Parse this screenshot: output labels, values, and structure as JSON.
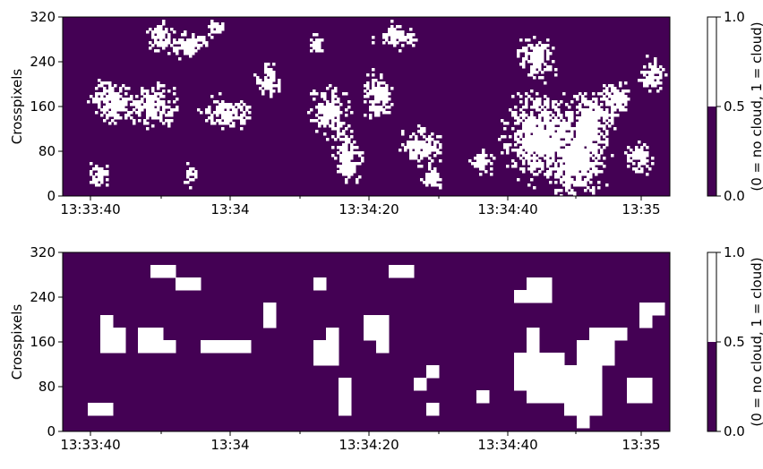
{
  "chart_data": [
    {
      "type": "heatmap",
      "title": "",
      "xlabel": "",
      "ylabel": "Crosspixels",
      "x_tick_labels": [
        "13:33:40",
        "13:34",
        "13:34:20",
        "13:34:40",
        "13:35"
      ],
      "y_tick_labels": [
        "0",
        "80",
        "160",
        "240",
        "320"
      ],
      "ylim": [
        0,
        320
      ],
      "colors": {
        "no_cloud": "#440154",
        "cloud": "#ffffff"
      },
      "colorbar": {
        "label": "(0 = no cloud, 1 = cloud)",
        "ticks": [
          "0.0",
          "0.5",
          "1.0"
        ]
      },
      "cloud_regions": [
        {
          "t": 0.16,
          "y": 285,
          "rx": 0.02,
          "ry": 22
        },
        {
          "t": 0.21,
          "y": 270,
          "rx": 0.025,
          "ry": 20
        },
        {
          "t": 0.25,
          "y": 300,
          "rx": 0.015,
          "ry": 12
        },
        {
          "t": 0.08,
          "y": 170,
          "rx": 0.03,
          "ry": 32
        },
        {
          "t": 0.15,
          "y": 160,
          "rx": 0.035,
          "ry": 32
        },
        {
          "t": 0.27,
          "y": 150,
          "rx": 0.035,
          "ry": 25
        },
        {
          "t": 0.34,
          "y": 205,
          "rx": 0.02,
          "ry": 28
        },
        {
          "t": 0.42,
          "y": 270,
          "rx": 0.01,
          "ry": 18
        },
        {
          "t": 0.55,
          "y": 285,
          "rx": 0.03,
          "ry": 20
        },
        {
          "t": 0.44,
          "y": 150,
          "rx": 0.03,
          "ry": 40
        },
        {
          "t": 0.47,
          "y": 60,
          "rx": 0.02,
          "ry": 40
        },
        {
          "t": 0.52,
          "y": 180,
          "rx": 0.02,
          "ry": 40
        },
        {
          "t": 0.59,
          "y": 90,
          "rx": 0.03,
          "ry": 28
        },
        {
          "t": 0.69,
          "y": 60,
          "rx": 0.015,
          "ry": 20
        },
        {
          "t": 0.78,
          "y": 250,
          "rx": 0.03,
          "ry": 30
        },
        {
          "t": 0.78,
          "y": 110,
          "rx": 0.05,
          "ry": 70
        },
        {
          "t": 0.85,
          "y": 60,
          "rx": 0.04,
          "ry": 55
        },
        {
          "t": 0.87,
          "y": 140,
          "rx": 0.03,
          "ry": 40
        },
        {
          "t": 0.91,
          "y": 175,
          "rx": 0.02,
          "ry": 28
        },
        {
          "t": 0.97,
          "y": 215,
          "rx": 0.02,
          "ry": 28
        },
        {
          "t": 0.95,
          "y": 70,
          "rx": 0.02,
          "ry": 25
        },
        {
          "t": 0.21,
          "y": 40,
          "rx": 0.01,
          "ry": 18
        },
        {
          "t": 0.61,
          "y": 30,
          "rx": 0.015,
          "ry": 18
        },
        {
          "t": 0.06,
          "y": 40,
          "rx": 0.015,
          "ry": 20
        }
      ]
    }
  ]
}
